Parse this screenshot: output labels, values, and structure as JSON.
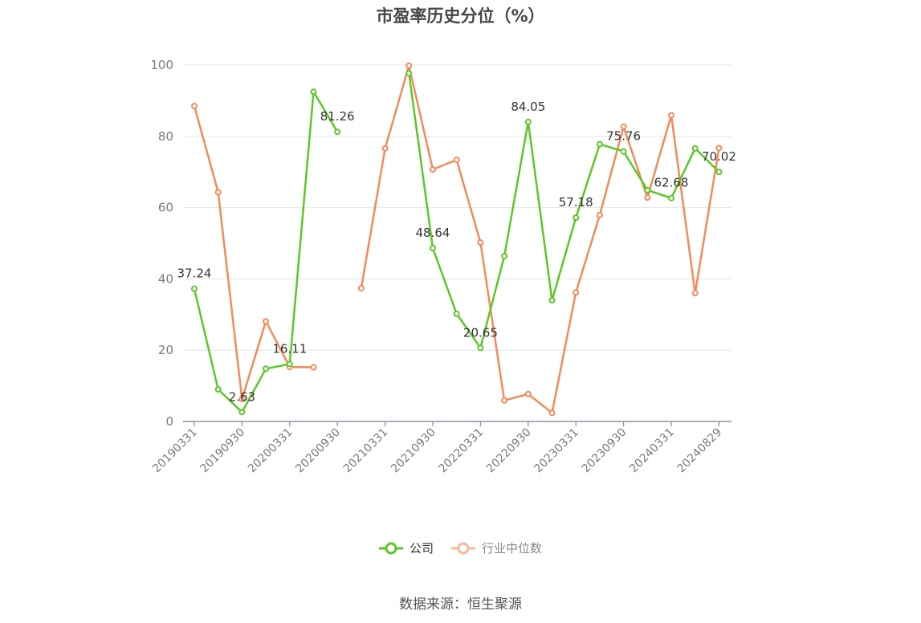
{
  "title": "市盈率历史分位（%）",
  "source": "数据来源：恒生聚源",
  "colors": {
    "company": "#5cc72a",
    "industry": "#f28a5a",
    "industry_legend": "#f6b89c",
    "axis_text": "#7a7a7a",
    "grid": "#e4e6ea",
    "axis_line": "#8c8fa0",
    "label": "#333333"
  },
  "chart_data": {
    "type": "line",
    "ylim": [
      0,
      100
    ],
    "yticks": [
      0,
      20,
      40,
      60,
      80,
      100
    ],
    "grid": true,
    "legend_position": "bottom",
    "x_ticks": [
      "20190331",
      "20190930",
      "20200331",
      "20200930",
      "20210331",
      "20210930",
      "20220331",
      "20220930",
      "20230331",
      "20230930",
      "20240331",
      "20240829"
    ],
    "series": [
      {
        "name": "公司",
        "color": "#5cc72a",
        "values": [
          37.24,
          9.0,
          2.63,
          14.8,
          16.11,
          92.5,
          81.26,
          null,
          null,
          97.7,
          48.64,
          30.2,
          20.65,
          46.4,
          84.05,
          34.0,
          57.18,
          77.8,
          75.76,
          64.9,
          62.68,
          76.6,
          70.02
        ]
      },
      {
        "name": "行业中位数",
        "color": "#f28a5a",
        "values": [
          88.5,
          64.3,
          6.3,
          28.1,
          15.3,
          15.2,
          null,
          37.4,
          76.6,
          99.8,
          70.7,
          73.4,
          50.2,
          5.9,
          7.7,
          2.4,
          36.2,
          57.9,
          82.7,
          62.8,
          85.9,
          36.0,
          76.7
        ]
      }
    ],
    "data_labels": [
      {
        "series": 0,
        "index": 0,
        "text": "37.24"
      },
      {
        "series": 0,
        "index": 2,
        "text": "2.63"
      },
      {
        "series": 0,
        "index": 4,
        "text": "16.11"
      },
      {
        "series": 0,
        "index": 6,
        "text": "81.26"
      },
      {
        "series": 0,
        "index": 10,
        "text": "48.64"
      },
      {
        "series": 0,
        "index": 12,
        "text": "20.65"
      },
      {
        "series": 0,
        "index": 14,
        "text": "84.05"
      },
      {
        "series": 0,
        "index": 16,
        "text": "57.18"
      },
      {
        "series": 0,
        "index": 18,
        "text": "75.76"
      },
      {
        "series": 0,
        "index": 20,
        "text": "62.68"
      },
      {
        "series": 0,
        "index": 22,
        "text": "70.02"
      }
    ]
  },
  "legend": [
    {
      "label": "公司"
    },
    {
      "label": "行业中位数"
    }
  ]
}
